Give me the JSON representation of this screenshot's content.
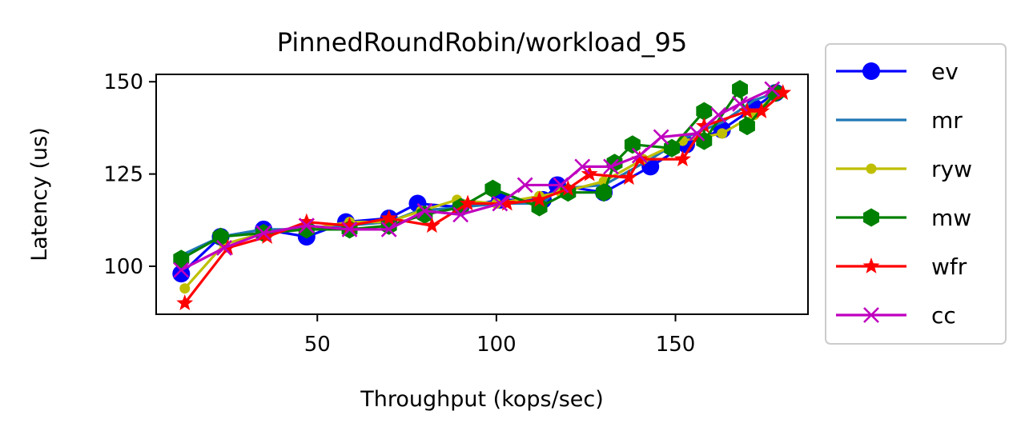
{
  "chart_data": {
    "type": "line",
    "title": "PinnedRoundRobin/workload_95",
    "xlabel": "Throughput (kops/sec)",
    "ylabel": "Latency (us)",
    "xlim": [
      5,
      187
    ],
    "ylim": [
      87,
      152
    ],
    "xticks": [
      50,
      100,
      150
    ],
    "yticks": [
      100,
      125,
      150
    ],
    "grid": false,
    "legend": "outside-right",
    "series": [
      {
        "name": "ev",
        "color": "#0000ff",
        "marker": "circle",
        "x": [
          12,
          23,
          35,
          47,
          58,
          70,
          78,
          90,
          101,
          113,
          117,
          130,
          143,
          153,
          163,
          172,
          178
        ],
        "y": [
          98,
          108,
          110,
          108,
          112,
          113,
          117,
          116,
          118,
          118,
          122,
          120,
          127,
          133,
          137,
          143,
          147
        ]
      },
      {
        "name": "mr",
        "color": "#1f77b4",
        "marker": "none",
        "x": [
          12,
          23,
          35,
          47,
          58,
          70,
          78,
          90,
          101,
          113,
          117,
          130,
          143,
          153,
          163,
          172,
          178
        ],
        "y": [
          103,
          108,
          110,
          110,
          111,
          112,
          115,
          116,
          117,
          117,
          121,
          122,
          129,
          135,
          139,
          145,
          147
        ]
      },
      {
        "name": "ryw",
        "color": "#bfbf00",
        "marker": "dot",
        "x": [
          13,
          24,
          35,
          47,
          59,
          70,
          79,
          89,
          100,
          112,
          118,
          130,
          141,
          152,
          163,
          172,
          178
        ],
        "y": [
          94,
          106,
          109,
          110,
          112,
          112,
          115,
          118,
          117,
          119,
          120,
          123,
          129,
          134,
          136,
          141,
          147
        ]
      },
      {
        "name": "mw",
        "color": "#008000",
        "marker": "hexagon",
        "x": [
          12,
          23,
          35,
          47,
          59,
          70,
          80,
          90,
          99,
          112,
          120,
          130,
          133,
          138,
          149,
          158,
          158,
          168,
          170,
          178
        ],
        "y": [
          102,
          108,
          109,
          110,
          110,
          111,
          114,
          116,
          121,
          116,
          120,
          120,
          128,
          133,
          132,
          142,
          134,
          148,
          138,
          147
        ]
      },
      {
        "name": "wfr",
        "color": "#ff0000",
        "marker": "star",
        "x": [
          13,
          25,
          36,
          47,
          59,
          70,
          82,
          92,
          103,
          112,
          120,
          126,
          137,
          140,
          152,
          158,
          170,
          174,
          180
        ],
        "y": [
          90,
          105,
          108,
          112,
          111,
          113,
          111,
          117,
          117,
          118,
          121,
          125,
          124,
          129,
          129,
          138,
          142,
          142,
          147
        ]
      },
      {
        "name": "cc",
        "color": "#bf00bf",
        "marker": "x",
        "x": [
          12,
          24,
          35,
          47,
          59,
          70,
          80,
          90,
          101,
          108,
          118,
          124,
          132,
          140,
          146,
          156,
          162,
          168,
          177
        ],
        "y": [
          99,
          105,
          109,
          111,
          110,
          110,
          115,
          114,
          117,
          122,
          122,
          127,
          127,
          130,
          135,
          136,
          141,
          144,
          148
        ]
      }
    ]
  }
}
